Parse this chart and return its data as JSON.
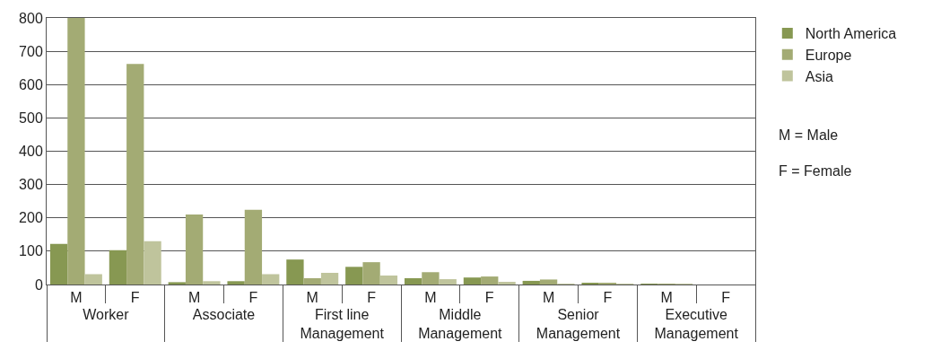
{
  "chart_data": {
    "type": "bar",
    "categories": [
      "M",
      "F",
      "M",
      "F",
      "M",
      "F",
      "M",
      "F",
      "M",
      "F",
      "M",
      "F"
    ],
    "series": [
      {
        "name": "North America",
        "color": "#879852",
        "values": [
          122,
          103,
          7,
          10,
          75,
          53,
          19,
          21,
          11,
          4,
          1,
          0
        ]
      },
      {
        "name": "Europe",
        "color": "#a3ab74",
        "values": [
          800,
          662,
          210,
          224,
          19,
          67,
          37,
          24,
          15,
          4,
          1,
          0
        ]
      },
      {
        "name": "Asia",
        "color": "#bfc49c",
        "values": [
          31,
          130,
          10,
          31,
          35,
          27,
          16,
          8,
          1,
          1,
          1,
          0
        ]
      }
    ],
    "annotations": [
      "Worker",
      "Associate",
      "First line Management",
      "Middle Management",
      "Senior Management",
      "Executive Management",
      "M = Male",
      "F = Female"
    ],
    "ylim": [
      0,
      800
    ],
    "yticks": [
      0,
      100,
      200,
      300,
      400,
      500,
      600,
      700,
      800
    ],
    "grid": "y",
    "legend": "top right"
  }
}
